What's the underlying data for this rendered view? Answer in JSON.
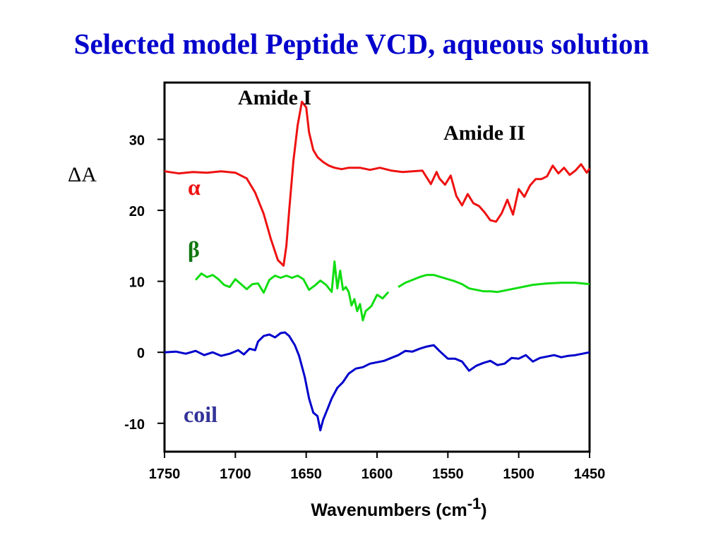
{
  "title": "Selected model Peptide VCD, aqueous solution",
  "colors": {
    "title": "#0000cc",
    "alpha": "#ee1111",
    "beta": "#11dd11",
    "coil": "#0000cc",
    "coil_label": "#333399",
    "beta_label": "#117711"
  },
  "chart_data": {
    "type": "line",
    "title": "Selected model Peptide VCD, aqueous solution",
    "xlabel": "Wavenumbers (cm",
    "xlabel_exponent": "-1",
    "xlabel_close": ")",
    "ylabel": "ΔA",
    "xlim": [
      1750,
      1450
    ],
    "ylim": [
      -14,
      38
    ],
    "xticks": [
      "1750",
      "1700",
      "1650",
      "1600",
      "1550",
      "1500",
      "1450"
    ],
    "yticks": [
      "30",
      "20",
      "10",
      "0",
      "-10"
    ],
    "annotations": {
      "amide1": "Amide  I",
      "amide2": "Amide II"
    },
    "series": [
      {
        "name": "alpha",
        "label": "α",
        "x": [
          1750,
          1740,
          1730,
          1720,
          1710,
          1700,
          1692,
          1686,
          1680,
          1675,
          1670,
          1666,
          1664,
          1662,
          1659,
          1656,
          1653,
          1650,
          1648,
          1645,
          1642,
          1638,
          1634,
          1630,
          1625,
          1620,
          1612,
          1605,
          1598,
          1590,
          1582,
          1575,
          1568,
          1562,
          1558,
          1556,
          1552,
          1548,
          1544,
          1540,
          1536,
          1532,
          1528,
          1524,
          1520,
          1516,
          1512,
          1508,
          1504,
          1500,
          1496,
          1492,
          1488,
          1484,
          1480,
          1476,
          1472,
          1468,
          1464,
          1460,
          1456,
          1452,
          1450
        ],
        "y": [
          25.5,
          25.2,
          25.4,
          25.3,
          25.5,
          25.3,
          24.5,
          22.5,
          19.5,
          16,
          13,
          12.2,
          15,
          20,
          27,
          32,
          35.3,
          34.5,
          31,
          28.5,
          27.5,
          26.8,
          26.3,
          26,
          25.8,
          26,
          26,
          25.7,
          26,
          25.6,
          25.4,
          25.5,
          25.6,
          23.7,
          25.4,
          24.5,
          23.6,
          24.9,
          22,
          20.7,
          22.3,
          21,
          20.6,
          19.7,
          18.6,
          18.4,
          19.6,
          21.5,
          19.4,
          23,
          21.9,
          23.5,
          24.4,
          24.4,
          24.8,
          26.3,
          25.2,
          26,
          25,
          25.6,
          26.5,
          25.3,
          25.9
        ]
      },
      {
        "name": "beta",
        "label": "β",
        "x": [
          1728,
          1724,
          1720,
          1716,
          1712,
          1708,
          1704,
          1700,
          1696,
          1692,
          1688,
          1684,
          1680,
          1676,
          1672,
          1668,
          1664,
          1660,
          1656,
          1652,
          1648,
          1644,
          1640,
          1636,
          1632,
          1630,
          1628,
          1626,
          1624,
          1622,
          1620,
          1618,
          1616,
          1614,
          1612,
          1610,
          1608,
          1604,
          1600,
          1596,
          1592,
          1590,
          1585,
          1580,
          1575,
          1570,
          1565,
          1560,
          1555,
          1550,
          1545,
          1540,
          1535,
          1530,
          1525,
          1520,
          1515,
          1510,
          1500,
          1490,
          1480,
          1470,
          1460,
          1450
        ],
        "y": [
          10.2,
          11.1,
          10.6,
          10.9,
          10.3,
          9.5,
          9.2,
          10.3,
          9.6,
          8.9,
          9.6,
          9.7,
          8.4,
          10.2,
          10.8,
          10.5,
          10.8,
          10.5,
          10.8,
          10.3,
          8.8,
          9.4,
          10.1,
          9.5,
          8.5,
          12.8,
          9,
          11.5,
          8.8,
          9.2,
          8.5,
          6.6,
          7.5,
          5.8,
          6.8,
          4.5,
          5.8,
          6.5,
          8.1,
          7.6,
          8.5,
          null,
          9.2,
          9.8,
          10.2,
          10.6,
          10.9,
          10.9,
          10.6,
          10.3,
          10,
          9.6,
          9,
          8.8,
          8.6,
          8.6,
          8.5,
          8.7,
          9.1,
          9.5,
          9.7,
          9.8,
          9.8,
          9.6
        ],
        "gaps": [
          1590
        ]
      },
      {
        "name": "coil",
        "label": "coil",
        "x": [
          1750,
          1742,
          1735,
          1728,
          1722,
          1716,
          1710,
          1704,
          1698,
          1694,
          1690,
          1686,
          1684,
          1680,
          1676,
          1672,
          1668,
          1665,
          1662,
          1658,
          1655,
          1651,
          1648,
          1645,
          1642,
          1640,
          1638,
          1635,
          1632,
          1628,
          1624,
          1620,
          1615,
          1610,
          1605,
          1600,
          1595,
          1590,
          1585,
          1580,
          1575,
          1570,
          1565,
          1560,
          1556,
          1550,
          1545,
          1540,
          1535,
          1530,
          1525,
          1520,
          1515,
          1510,
          1505,
          1500,
          1495,
          1490,
          1485,
          1480,
          1475,
          1470,
          1465,
          1460,
          1455,
          1450
        ],
        "y": [
          0,
          0.1,
          -0.2,
          0.2,
          -0.4,
          0,
          -0.5,
          -0.2,
          0.3,
          -0.3,
          0.5,
          0.3,
          1.5,
          2.3,
          2.5,
          2.1,
          2.7,
          2.8,
          2.3,
          1,
          -0.5,
          -3.5,
          -6.5,
          -8.5,
          -9,
          -11,
          -9.5,
          -8,
          -6.5,
          -5,
          -4.2,
          -3,
          -2.3,
          -2.1,
          -1.6,
          -1.4,
          -1.2,
          -0.8,
          -0.4,
          0.2,
          0.1,
          0.5,
          0.8,
          1,
          0.2,
          -0.9,
          -0.9,
          -1.3,
          -2.6,
          -1.9,
          -1.5,
          -1.2,
          -1.8,
          -1.6,
          -0.8,
          -0.9,
          -0.4,
          -1.3,
          -0.8,
          -0.6,
          -0.4,
          -0.7,
          -0.5,
          -0.4,
          -0.2,
          0
        ]
      }
    ]
  }
}
